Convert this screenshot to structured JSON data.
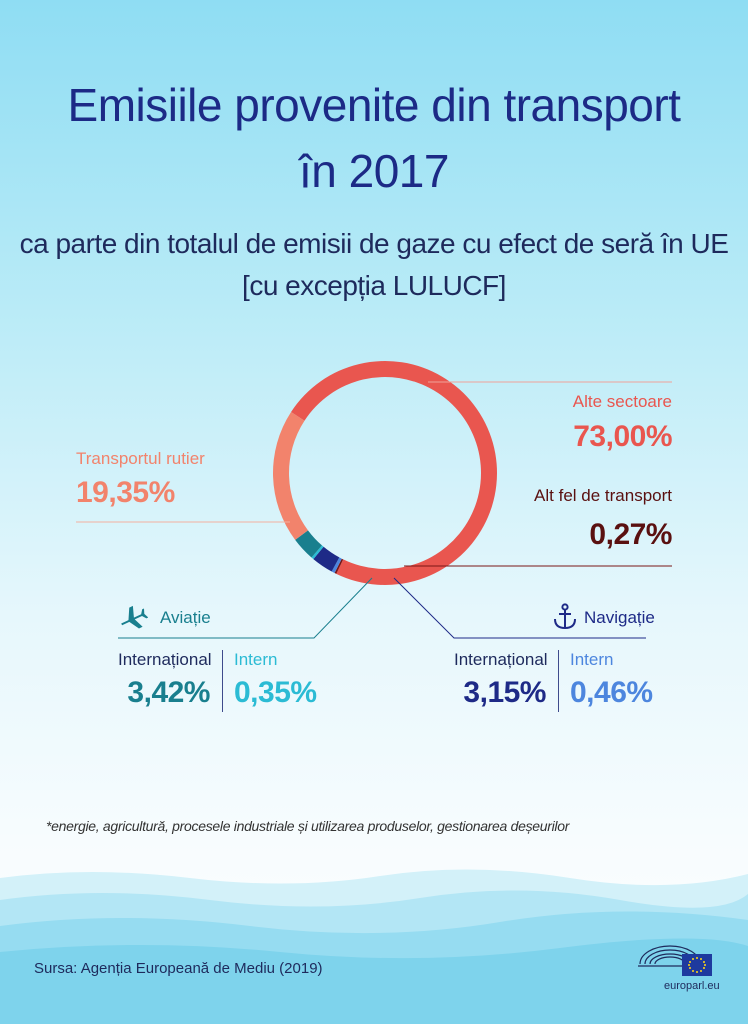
{
  "header": {
    "title_line1": "Emisiile provenite din transport",
    "title_line2": "în 2017",
    "subtitle_line1": "ca parte din totalul de emisii de gaze cu efect de seră în UE",
    "subtitle_line2": "[cu excepția LULUCF]"
  },
  "chart_data": {
    "type": "pie",
    "variant": "donut",
    "title": "Emisiile provenite din transport în 2017",
    "unit": "%",
    "slices": [
      {
        "label": "Alte sectoare",
        "value": 73.0,
        "display": "73,00%",
        "color": "#e9564f"
      },
      {
        "label": "Alt fel de transport",
        "value": 0.27,
        "display": "0,27%",
        "color": "#7a1616"
      },
      {
        "label": "Navigație - Intern",
        "value": 0.46,
        "display": "0,46%",
        "color": "#4d86de"
      },
      {
        "label": "Navigație - Internațional",
        "value": 3.15,
        "display": "3,15%",
        "color": "#1e2a87"
      },
      {
        "label": "Aviație - Intern",
        "value": 0.35,
        "display": "0,35%",
        "color": "#2bbbd4"
      },
      {
        "label": "Aviație - Internațional",
        "value": 3.42,
        "display": "3,42%",
        "color": "#197f8e"
      },
      {
        "label": "Transportul rutier",
        "value": 19.35,
        "display": "19,35%",
        "color": "#f2836c"
      }
    ]
  },
  "labels": {
    "other_sectors": {
      "name": "Alte sectoare",
      "value": "73,00%"
    },
    "road": {
      "name": "Transportul rutier",
      "value": "19,35%"
    },
    "other_transport": {
      "name": "Alt fel de transport",
      "value": "0,27%"
    },
    "aviation": {
      "name": "Aviație",
      "international_label": "Internațional",
      "international_value": "3,42%",
      "domestic_label": "Intern",
      "domestic_value": "0,35%"
    },
    "navigation": {
      "name": "Navigație",
      "international_label": "Internațional",
      "international_value": "3,15%",
      "domestic_label": "Intern",
      "domestic_value": "0,46%"
    }
  },
  "footnote": "*energie, agricultură, procesele industriale și utilizarea produselor, gestionarea deșeurilor",
  "source": "Sursa: Agenția Europeană de Mediu (2019)",
  "brand": {
    "site": "europarl.eu"
  },
  "colors": {
    "title": "#1c2a86",
    "other_sectors": "#e9564f",
    "road": "#f2836c",
    "other_transport": "#7a1616",
    "aviation": "#197f8e",
    "aviation_domestic": "#2bbbd4",
    "navigation": "#1e2a87",
    "navigation_domestic": "#4d86de"
  }
}
